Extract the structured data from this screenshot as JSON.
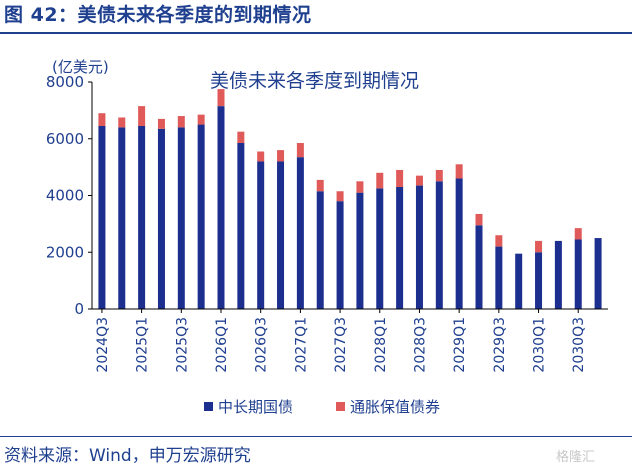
{
  "figure": {
    "title": "图 42：美债未来各季度的到期情况",
    "source": "资料来源：Wind，申万宏源研究",
    "watermark": "格隆汇"
  },
  "chart_data": {
    "type": "bar",
    "stacked": true,
    "title": "美债未来各季度到期情况",
    "ylabel": "(亿美元)",
    "ylim": [
      0,
      8000
    ],
    "yticks": [
      0,
      2000,
      4000,
      6000,
      8000
    ],
    "categories": [
      "2024Q3",
      "2024Q4",
      "2025Q1",
      "2025Q2",
      "2025Q3",
      "2025Q4",
      "2026Q1",
      "2026Q2",
      "2026Q3",
      "2026Q4",
      "2027Q1",
      "2027Q2",
      "2027Q3",
      "2027Q4",
      "2028Q1",
      "2028Q2",
      "2028Q3",
      "2028Q4",
      "2029Q1",
      "2029Q2",
      "2029Q3",
      "2029Q4",
      "2030Q1",
      "2030Q2",
      "2030Q3",
      "2030Q4"
    ],
    "x_tick_labels": [
      "2024Q3",
      "2025Q1",
      "2025Q3",
      "2026Q1",
      "2026Q3",
      "2027Q1",
      "2027Q3",
      "2028Q1",
      "2028Q3",
      "2029Q1",
      "2029Q3",
      "2030Q1",
      "2030Q3"
    ],
    "series": [
      {
        "name": "中长期国债",
        "color": "#1c2f8f",
        "values": [
          6450,
          6400,
          6450,
          6350,
          6400,
          6500,
          7150,
          5850,
          5200,
          5200,
          5350,
          4150,
          3800,
          4100,
          4250,
          4300,
          4350,
          4500,
          4600,
          2950,
          2200,
          1950,
          2000,
          2400,
          2450,
          2500
        ]
      },
      {
        "name": "通胀保值债券",
        "color": "#e05a5a",
        "values": [
          450,
          350,
          700,
          350,
          400,
          350,
          600,
          400,
          350,
          400,
          500,
          400,
          350,
          400,
          550,
          600,
          350,
          400,
          500,
          400,
          400,
          0,
          400,
          0,
          400,
          0
        ]
      }
    ],
    "legend_position": "bottom",
    "grid": false
  }
}
